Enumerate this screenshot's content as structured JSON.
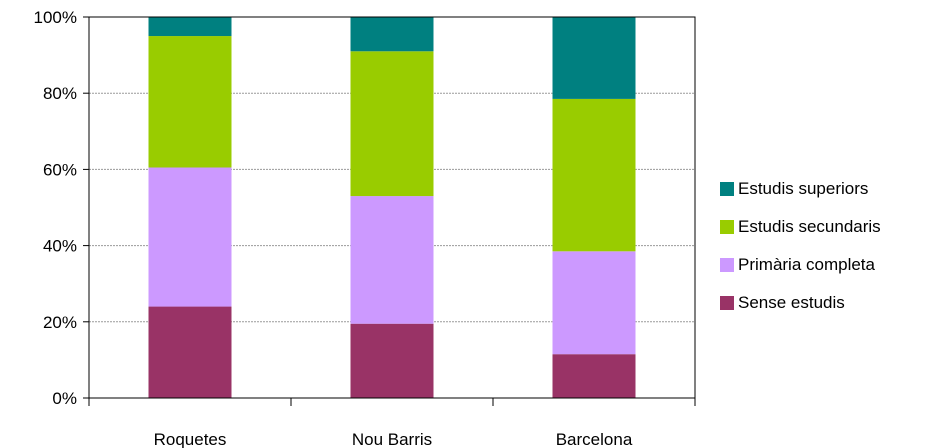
{
  "chart_data": {
    "type": "bar",
    "stacked": true,
    "percent": true,
    "categories": [
      "Roquetes",
      "Nou Barris",
      "Barcelona"
    ],
    "series": [
      {
        "name": "Sense estudis",
        "color": "#993366",
        "values": [
          24,
          19.5,
          11.5
        ]
      },
      {
        "name": "Primària completa",
        "color": "#CC99FF",
        "values": [
          36.5,
          33.5,
          27
        ]
      },
      {
        "name": "Estudis secundaris",
        "color": "#99CC00",
        "values": [
          34.5,
          38,
          40
        ]
      },
      {
        "name": "Estudis superiors",
        "color": "#008080",
        "values": [
          5,
          9,
          21.5
        ]
      }
    ],
    "yticks": [
      "0%",
      "20%",
      "40%",
      "60%",
      "80%",
      "100%"
    ],
    "ylim": [
      0,
      100
    ],
    "grid": true,
    "legend_position": "right",
    "title": "",
    "xlabel": "",
    "ylabel": ""
  },
  "legend": {
    "items": [
      {
        "label": "Estudis superiors",
        "color": "#008080"
      },
      {
        "label": "Estudis secundaris",
        "color": "#99CC00"
      },
      {
        "label": "Primària completa",
        "color": "#CC99FF"
      },
      {
        "label": "Sense estudis",
        "color": "#993366"
      }
    ]
  }
}
